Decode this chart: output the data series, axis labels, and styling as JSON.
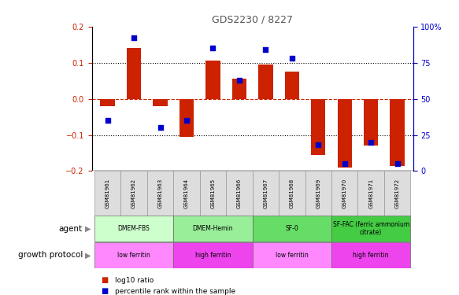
{
  "title": "GDS2230 / 8227",
  "samples": [
    "GSM81961",
    "GSM81962",
    "GSM81963",
    "GSM81964",
    "GSM81965",
    "GSM81966",
    "GSM81967",
    "GSM81968",
    "GSM81969",
    "GSM81970",
    "GSM81971",
    "GSM81972"
  ],
  "log10_ratio": [
    -0.02,
    0.14,
    -0.02,
    -0.105,
    0.105,
    0.055,
    0.095,
    0.075,
    -0.155,
    -0.19,
    -0.13,
    -0.185
  ],
  "percentile_rank": [
    35,
    92,
    30,
    35,
    85,
    63,
    84,
    78,
    18,
    5,
    20,
    5
  ],
  "bar_color": "#cc2200",
  "dot_color": "#0000cc",
  "ylim_left": [
    -0.2,
    0.2
  ],
  "ylim_right": [
    0,
    100
  ],
  "yticks_left": [
    -0.2,
    -0.1,
    0,
    0.1,
    0.2
  ],
  "yticks_right": [
    0,
    25,
    50,
    75,
    100
  ],
  "ytick_labels_right": [
    "0",
    "25",
    "50",
    "75",
    "100%"
  ],
  "dotted_lines": [
    -0.1,
    0.1
  ],
  "agent_groups": [
    {
      "label": "DMEM-FBS",
      "start": 0,
      "end": 2,
      "color": "#ccffcc"
    },
    {
      "label": "DMEM-Hemin",
      "start": 3,
      "end": 5,
      "color": "#99ee99"
    },
    {
      "label": "SF-0",
      "start": 6,
      "end": 8,
      "color": "#66dd66"
    },
    {
      "label": "SF-FAC (ferric ammonium\ncitrate)",
      "start": 9,
      "end": 11,
      "color": "#44cc44"
    }
  ],
  "protocol_groups": [
    {
      "label": "low ferritin",
      "start": 0,
      "end": 2,
      "color": "#ff88ff"
    },
    {
      "label": "high ferritin",
      "start": 3,
      "end": 5,
      "color": "#ee44ee"
    },
    {
      "label": "low ferritin",
      "start": 6,
      "end": 8,
      "color": "#ff88ff"
    },
    {
      "label": "high ferritin",
      "start": 9,
      "end": 11,
      "color": "#ee44ee"
    }
  ],
  "legend_items": [
    {
      "label": "log10 ratio",
      "color": "#cc2200"
    },
    {
      "label": "percentile rank within the sample",
      "color": "#0000cc"
    }
  ],
  "agent_label": "agent",
  "protocol_label": "growth protocol",
  "left_yaxis_color": "#cc2200",
  "right_yaxis_color": "#0000cc",
  "title_color": "#555555",
  "sample_bg": "#dddddd",
  "sample_border": "#999999"
}
